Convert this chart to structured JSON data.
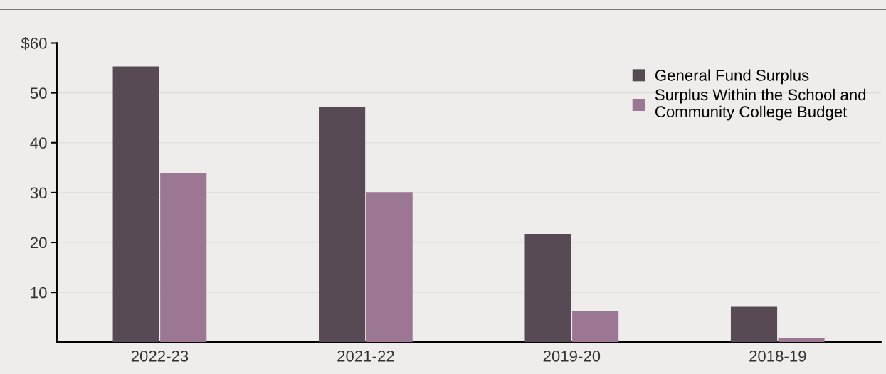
{
  "chart_data": {
    "type": "bar",
    "categories": [
      "2022-23",
      "2021-22",
      "2019-20",
      "2018-19"
    ],
    "series": [
      {
        "name": "General Fund Surplus",
        "color": "#574a55",
        "values": [
          55.3,
          47.1,
          21.7,
          7.1
        ]
      },
      {
        "name": "Surplus Within the School and\nCommunity College Budget",
        "color": "#9c7793",
        "values": [
          33.9,
          30.1,
          6.3,
          0.9
        ]
      }
    ],
    "ylim": [
      0,
      60
    ],
    "yticks": [
      {
        "value": 60,
        "label": "$60"
      },
      50,
      40,
      30,
      20,
      10
    ],
    "grid": "y",
    "legend": "top right"
  }
}
